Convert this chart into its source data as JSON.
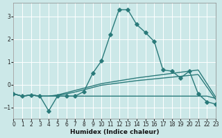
{
  "xlabel": "Humidex (Indice chaleur)",
  "bg_color": "#cce8e8",
  "grid_color": "#b8d8d8",
  "line_color": "#2a7a7a",
  "xlim": [
    0,
    23
  ],
  "ylim": [
    -1.5,
    3.6
  ],
  "yticks": [
    -1,
    0,
    1,
    2,
    3
  ],
  "xticks": [
    0,
    1,
    2,
    3,
    4,
    5,
    6,
    7,
    8,
    9,
    10,
    11,
    12,
    13,
    14,
    15,
    16,
    17,
    18,
    19,
    20,
    21,
    22,
    23
  ],
  "curve1_x": [
    0,
    1,
    2,
    3,
    4,
    5,
    6,
    7,
    8,
    9,
    10,
    11,
    12,
    13,
    14,
    15,
    16,
    17,
    18,
    19,
    20,
    21,
    22,
    23
  ],
  "curve1_y": [
    -0.4,
    -0.5,
    -0.45,
    -0.5,
    -1.15,
    -0.5,
    -0.5,
    -0.5,
    -0.3,
    0.5,
    1.05,
    2.2,
    3.3,
    3.3,
    2.65,
    2.3,
    1.9,
    0.65,
    0.6,
    0.3,
    0.6,
    -0.4,
    -0.75,
    -0.85
  ],
  "curve2_x": [
    0,
    1,
    2,
    3,
    4,
    5,
    6,
    7,
    8,
    9,
    10,
    14,
    21,
    23
  ],
  "curve2_y": [
    -0.4,
    -0.5,
    -0.45,
    -0.5,
    -0.5,
    -0.45,
    -0.35,
    -0.25,
    -0.15,
    -0.05,
    0.05,
    0.3,
    0.65,
    -0.55
  ],
  "curve3_x": [
    0,
    1,
    2,
    3,
    4,
    5,
    6,
    7,
    8,
    9,
    10,
    14,
    21,
    23
  ],
  "curve3_y": [
    -0.4,
    -0.5,
    -0.45,
    -0.5,
    -0.5,
    -0.47,
    -0.4,
    -0.32,
    -0.22,
    -0.12,
    -0.02,
    0.18,
    0.45,
    -0.65
  ],
  "curve4_x": [
    0,
    1,
    2,
    3,
    4,
    5,
    6,
    7,
    8,
    9,
    10,
    11,
    12,
    13,
    14,
    15,
    16,
    17,
    18,
    19,
    20,
    21,
    22,
    23
  ],
  "curve4_y": [
    -0.4,
    -0.5,
    -0.45,
    -0.5,
    -0.5,
    -0.5,
    -0.5,
    -0.5,
    -0.5,
    -0.5,
    -0.5,
    -0.5,
    -0.5,
    -0.5,
    -0.5,
    -0.5,
    -0.5,
    -0.5,
    -0.5,
    -0.5,
    -0.5,
    -0.5,
    -0.5,
    -0.6
  ]
}
